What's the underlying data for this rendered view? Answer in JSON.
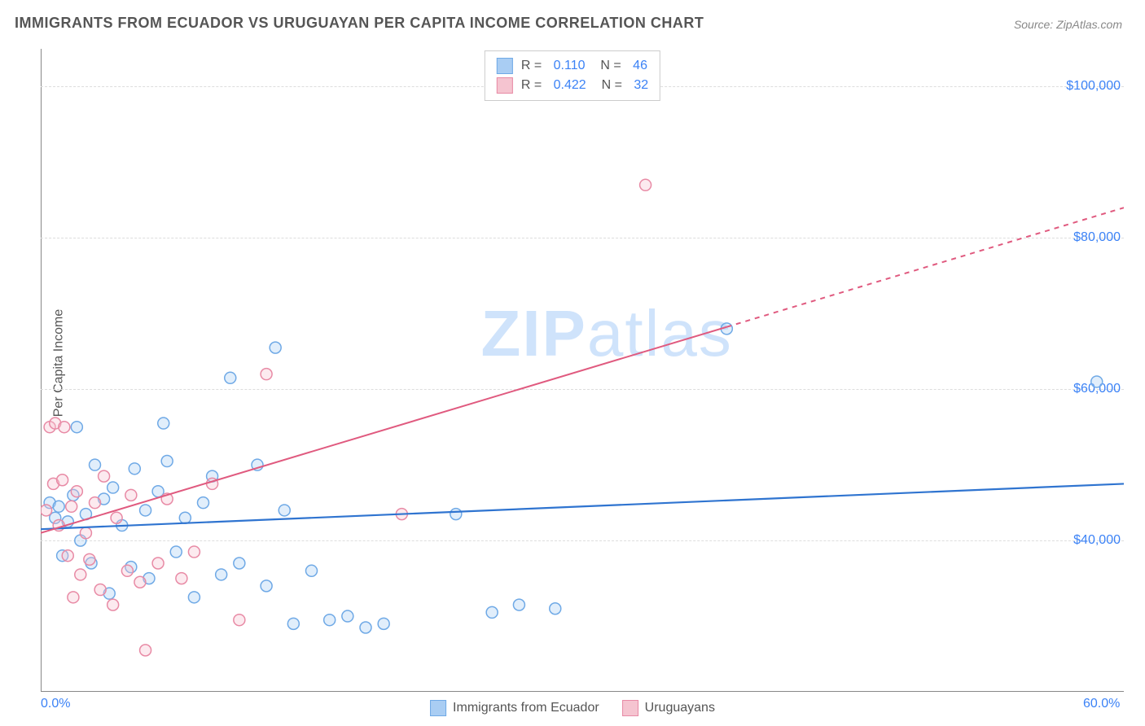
{
  "title": "IMMIGRANTS FROM ECUADOR VS URUGUAYAN PER CAPITA INCOME CORRELATION CHART",
  "source_label": "Source: ZipAtlas.com",
  "watermark": {
    "bold": "ZIP",
    "rest": "atlas"
  },
  "chart": {
    "type": "scatter",
    "ylabel": "Per Capita Income",
    "xlim": [
      0,
      60
    ],
    "ylim": [
      20000,
      105000
    ],
    "x_ticks": [
      {
        "value": 0,
        "label": "0.0%"
      },
      {
        "value": 60,
        "label": "60.0%"
      }
    ],
    "y_ticks": [
      {
        "value": 40000,
        "label": "$40,000"
      },
      {
        "value": 60000,
        "label": "$60,000"
      },
      {
        "value": 80000,
        "label": "$80,000"
      },
      {
        "value": 100000,
        "label": "$100,000"
      }
    ],
    "grid_color": "#dddddd",
    "background_color": "#ffffff",
    "axis_color": "#888888",
    "tick_label_color": "#3b82f6",
    "marker_radius": 7,
    "marker_fill_opacity": 0.35,
    "marker_stroke_width": 1.5,
    "series": [
      {
        "id": "ecuador",
        "label": "Immigrants from Ecuador",
        "color_fill": "#a9cdf3",
        "color_stroke": "#6fa9e6",
        "trend_color": "#2f74d0",
        "trend_width": 2.2,
        "trend_dash_after": null,
        "R": "0.110",
        "N": "46",
        "trend": {
          "x1": 0,
          "y1": 41500,
          "x2": 60,
          "y2": 47500
        },
        "points": [
          [
            0.5,
            45000
          ],
          [
            0.8,
            43000
          ],
          [
            1.0,
            44500
          ],
          [
            1.2,
            38000
          ],
          [
            1.5,
            42500
          ],
          [
            1.8,
            46000
          ],
          [
            2.0,
            55000
          ],
          [
            2.2,
            40000
          ],
          [
            2.5,
            43500
          ],
          [
            2.8,
            37000
          ],
          [
            3.0,
            50000
          ],
          [
            3.5,
            45500
          ],
          [
            3.8,
            33000
          ],
          [
            4.0,
            47000
          ],
          [
            4.5,
            42000
          ],
          [
            5.0,
            36500
          ],
          [
            5.2,
            49500
          ],
          [
            5.8,
            44000
          ],
          [
            6.0,
            35000
          ],
          [
            6.5,
            46500
          ],
          [
            7.0,
            50500
          ],
          [
            7.5,
            38500
          ],
          [
            8.0,
            43000
          ],
          [
            8.5,
            32500
          ],
          [
            9.0,
            45000
          ],
          [
            9.5,
            48500
          ],
          [
            10.0,
            35500
          ],
          [
            10.5,
            61500
          ],
          [
            11.0,
            37000
          ],
          [
            12.0,
            50000
          ],
          [
            12.5,
            34000
          ],
          [
            13.0,
            65500
          ],
          [
            13.5,
            44000
          ],
          [
            14.0,
            29000
          ],
          [
            15.0,
            36000
          ],
          [
            16.0,
            29500
          ],
          [
            17.0,
            30000
          ],
          [
            18.0,
            28500
          ],
          [
            19.0,
            29000
          ],
          [
            23.0,
            43500
          ],
          [
            25.0,
            30500
          ],
          [
            26.5,
            31500
          ],
          [
            28.5,
            31000
          ],
          [
            38.0,
            68000
          ],
          [
            58.5,
            61000
          ],
          [
            6.8,
            55500
          ]
        ]
      },
      {
        "id": "uruguay",
        "label": "Uruguayans",
        "color_fill": "#f5c4d0",
        "color_stroke": "#e88aa5",
        "trend_color": "#e05a7f",
        "trend_width": 2.0,
        "trend_dash_after": 38,
        "R": "0.422",
        "N": "32",
        "trend": {
          "x1": 0,
          "y1": 41000,
          "x2": 60,
          "y2": 84000
        },
        "points": [
          [
            0.3,
            44000
          ],
          [
            0.5,
            55000
          ],
          [
            0.7,
            47500
          ],
          [
            0.8,
            55500
          ],
          [
            1.0,
            42000
          ],
          [
            1.2,
            48000
          ],
          [
            1.3,
            55000
          ],
          [
            1.5,
            38000
          ],
          [
            1.7,
            44500
          ],
          [
            1.8,
            32500
          ],
          [
            2.0,
            46500
          ],
          [
            2.2,
            35500
          ],
          [
            2.5,
            41000
          ],
          [
            2.7,
            37500
          ],
          [
            3.0,
            45000
          ],
          [
            3.3,
            33500
          ],
          [
            3.5,
            48500
          ],
          [
            4.0,
            31500
          ],
          [
            4.2,
            43000
          ],
          [
            4.8,
            36000
          ],
          [
            5.0,
            46000
          ],
          [
            5.5,
            34500
          ],
          [
            5.8,
            25500
          ],
          [
            6.5,
            37000
          ],
          [
            7.0,
            45500
          ],
          [
            7.8,
            35000
          ],
          [
            8.5,
            38500
          ],
          [
            9.5,
            47500
          ],
          [
            11.0,
            29500
          ],
          [
            12.5,
            62000
          ],
          [
            20.0,
            43500
          ],
          [
            33.5,
            87000
          ]
        ]
      }
    ],
    "legend_bottom": [
      {
        "series": "ecuador"
      },
      {
        "series": "uruguay"
      }
    ],
    "legend_top_rows": [
      {
        "series": "ecuador"
      },
      {
        "series": "uruguay"
      }
    ],
    "label_fontsize": 16,
    "title_fontsize": 18
  }
}
